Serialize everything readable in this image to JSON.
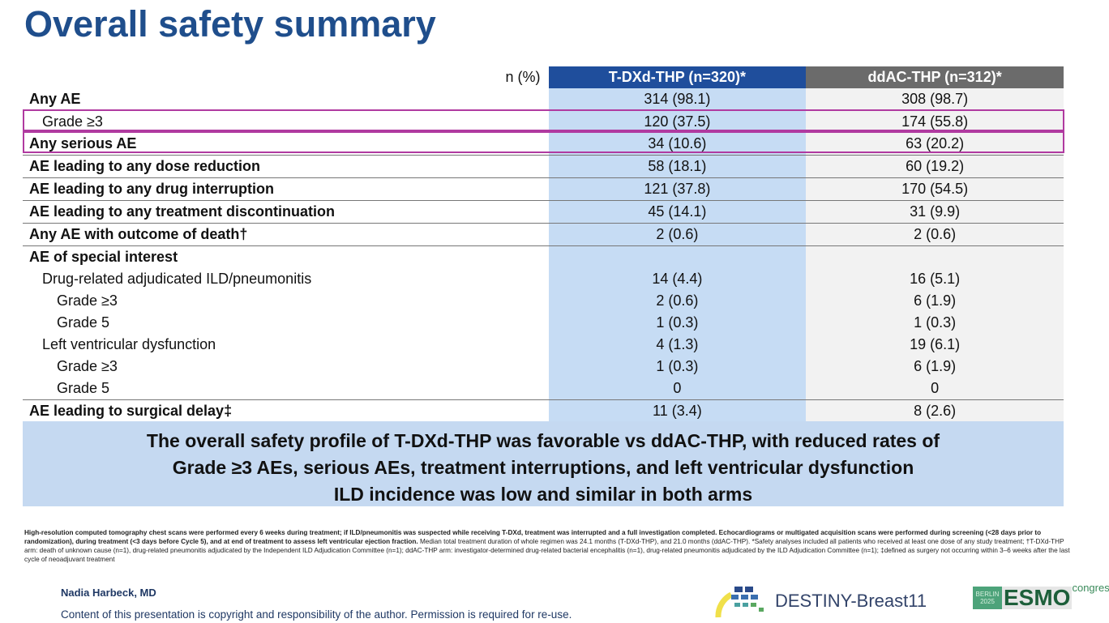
{
  "title": "Overall safety summary",
  "table": {
    "header": {
      "unit": "n (%)",
      "col1": "T-DXd-THP (n=320)*",
      "col2": "ddAC-THP (n=312)*"
    },
    "rows": [
      {
        "label": "Any AE",
        "v1": "314 (98.1)",
        "v2": "308 (98.7)"
      },
      {
        "label": "Grade ≥3",
        "v1": "120 (37.5)",
        "v2": "174 (55.8)"
      },
      {
        "label": "Any serious AE",
        "v1": "34 (10.6)",
        "v2": "63 (20.2)"
      },
      {
        "label": "AE leading to any dose reduction",
        "v1": "58 (18.1)",
        "v2": "60 (19.2)"
      },
      {
        "label": "AE leading to any drug interruption",
        "v1": "121 (37.8)",
        "v2": "170 (54.5)"
      },
      {
        "label": "AE leading to any treatment discontinuation",
        "v1": "45 (14.1)",
        "v2": "31 (9.9)"
      },
      {
        "label": "Any AE with outcome of death†",
        "v1": "2 (0.6)",
        "v2": "2 (0.6)"
      },
      {
        "label": "AE of special interest",
        "v1": "",
        "v2": ""
      },
      {
        "label": "Drug-related adjudicated ILD/pneumonitis",
        "v1": "14 (4.4)",
        "v2": "16 (5.1)"
      },
      {
        "label": "Grade ≥3",
        "v1": "2 (0.6)",
        "v2": "6 (1.9)"
      },
      {
        "label": "Grade 5",
        "v1": "1 (0.3)",
        "v2": "1 (0.3)"
      },
      {
        "label": "Left ventricular dysfunction",
        "v1": "4 (1.3)",
        "v2": "19 (6.1)"
      },
      {
        "label": "Grade ≥3",
        "v1": "1 (0.3)",
        "v2": "6 (1.9)"
      },
      {
        "label": "Grade 5",
        "v1": "0",
        "v2": "0"
      },
      {
        "label": "AE leading to surgical delay‡",
        "v1": "11 (3.4)",
        "v2": "8 (2.6)"
      }
    ]
  },
  "summary": {
    "line1": "The overall safety profile of T-DXd-THP was favorable vs ddAC-THP, with reduced rates of",
    "line2": "Grade ≥3 AEs, serious AEs, treatment interruptions, and left ventricular dysfunction",
    "line3": "ILD incidence was low and similar in both arms"
  },
  "footnote": {
    "bold": "High-resolution computed tomography chest scans were performed every 6 weeks during treatment; if ILD/pneumonitis was suspected while receiving T-DXd, treatment was interrupted and a full investigation completed. Echocardiograms or multigated acquisition scans were performed during screening (<28 days prior to randomization), during treatment (<3 days before Cycle 5), and at end of treatment to assess left ventricular ejection fraction.",
    "rest": " Median total treatment duration of whole regimen was 24.1 months (T-DXd-THP), and 21.0 months (ddAC-THP). *Safety analyses included all patients who received at least one dose of any study treatment; †T-DXd-THP arm: death of unknown cause (n=1), drug-related pneumonitis adjudicated by the Independent ILD Adjudication Committee (n=1); ddAC-THP arm: investigator-determined drug-related bacterial encephalitis (n=1), drug-related pneumonitis adjudicated by the ILD Adjudication Committee (n=1); ‡defined as surgery not occurring within 3–6 weeks after the last cycle of neoadjuvant treatment"
  },
  "author": "Nadia Harbeck, MD",
  "copyright": "Content of this presentation is copyright and responsibility of the author. Permission is required for re-use.",
  "logos": {
    "trial": "DESTINY-Breast11",
    "city": "BERLIN",
    "year": "2025",
    "esmo": "ESMO",
    "congress": "congress"
  }
}
